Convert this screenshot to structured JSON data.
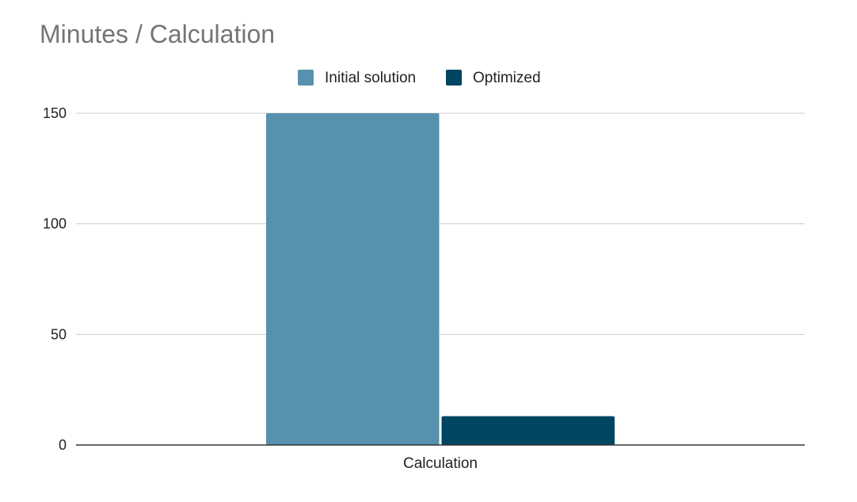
{
  "chart_data": {
    "type": "bar",
    "title": "Minutes / Calculation",
    "categories": [
      "Calculation"
    ],
    "series": [
      {
        "name": "Initial solution",
        "values": [
          150
        ],
        "color": "#5891AD"
      },
      {
        "name": "Optimized",
        "values": [
          13
        ],
        "color": "#004561"
      }
    ],
    "ylim": [
      0,
      150
    ],
    "yticks": [
      "0",
      "50",
      "100",
      "150"
    ],
    "grid": true,
    "legend_position": "top-center"
  }
}
